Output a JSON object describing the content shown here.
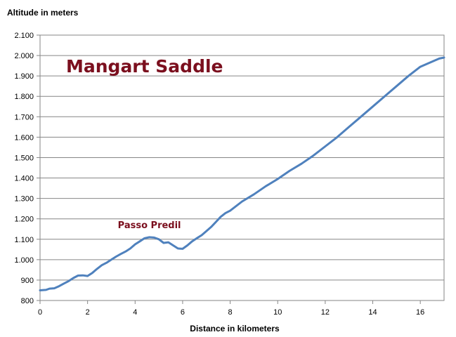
{
  "chart_data": {
    "type": "line",
    "title": "Mangart Saddle",
    "xlabel": "Distance in kilometers",
    "ylabel": "Altitude in meters",
    "xlim": [
      0,
      17
    ],
    "ylim": [
      800,
      2100
    ],
    "x_ticks": [
      "0",
      "2",
      "4",
      "6",
      "8",
      "10",
      "12",
      "14",
      "16"
    ],
    "y_ticks": [
      "800",
      "900",
      "1.000",
      "1.100",
      "1.200",
      "1.300",
      "1.400",
      "1.500",
      "1.600",
      "1.700",
      "1.800",
      "1.900",
      "2.000",
      "2.100"
    ],
    "grid": "horizontal",
    "line_color": "#4f81bd",
    "series": [
      {
        "x": [
          0,
          0.25,
          0.4,
          0.6,
          0.8,
          1.0,
          1.2,
          1.4,
          1.6,
          1.8,
          2.0,
          2.2,
          2.4,
          2.6,
          2.8,
          3.0,
          3.2,
          3.4,
          3.6,
          3.8,
          4.0,
          4.2,
          4.4,
          4.6,
          4.8,
          5.0,
          5.2,
          5.4,
          5.6,
          5.8,
          6.0,
          6.2,
          6.4,
          6.6,
          6.8,
          7.0,
          7.2,
          7.4,
          7.6,
          7.8,
          8.0,
          8.5,
          9.0,
          9.5,
          10.0,
          10.5,
          11.0,
          11.5,
          12.0,
          12.5,
          13.0,
          13.5,
          14.0,
          14.5,
          15.0,
          15.5,
          16.0,
          16.5,
          16.8,
          17.0
        ],
        "y": [
          850,
          852,
          858,
          860,
          870,
          883,
          895,
          910,
          922,
          923,
          920,
          935,
          955,
          973,
          985,
          1000,
          1015,
          1028,
          1040,
          1055,
          1075,
          1090,
          1105,
          1110,
          1108,
          1100,
          1082,
          1085,
          1070,
          1055,
          1053,
          1070,
          1090,
          1105,
          1120,
          1140,
          1160,
          1185,
          1210,
          1228,
          1240,
          1285,
          1320,
          1360,
          1395,
          1435,
          1470,
          1510,
          1555,
          1600,
          1650,
          1700,
          1750,
          1800,
          1850,
          1900,
          1945,
          1970,
          1985,
          1990
        ]
      }
    ],
    "annotations": [
      {
        "text": "Passo Predil",
        "x": 4.6,
        "y": 1110
      }
    ]
  }
}
